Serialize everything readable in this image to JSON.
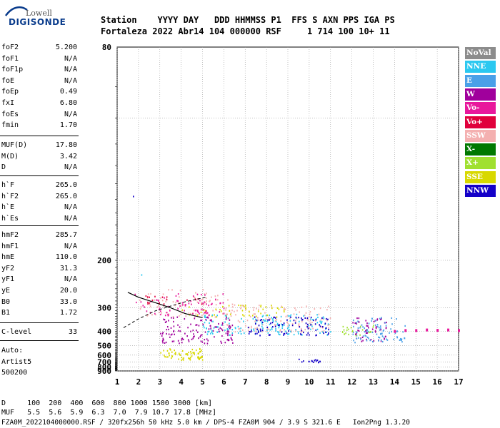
{
  "logo": {
    "line1": "Lowell",
    "line2": "DIGISONDE"
  },
  "header": {
    "row1": "Station    YYYY DAY   DDD HHMMSS P1  FFS S AXN PPS IGA PS",
    "row2": "Fortaleza 2022 Abr14 104 000000 RSF     1 714 100 10+ 11"
  },
  "params_group1": [
    {
      "key": "foF2",
      "value": "5.200"
    },
    {
      "key": "foF1",
      "value": "N/A"
    },
    {
      "key": "foF1p",
      "value": "N/A"
    },
    {
      "key": "foE",
      "value": "N/A"
    },
    {
      "key": "foEp",
      "value": "0.49"
    },
    {
      "key": "fxI",
      "value": "6.80"
    },
    {
      "key": "foEs",
      "value": "N/A"
    },
    {
      "key": "fmin",
      "value": "1.70"
    }
  ],
  "params_group2": [
    {
      "key": "MUF(D)",
      "value": "17.80"
    },
    {
      "key": "M(D)",
      "value": "3.42"
    },
    {
      "key": "D",
      "value": "N/A"
    }
  ],
  "params_group3": [
    {
      "key": "h`F",
      "value": "265.0"
    },
    {
      "key": "h`F2",
      "value": "265.0"
    },
    {
      "key": "h`E",
      "value": "N/A"
    },
    {
      "key": "h`Es",
      "value": "N/A"
    }
  ],
  "params_group4": [
    {
      "key": "hmF2",
      "value": "285.7"
    },
    {
      "key": "hmF1",
      "value": "N/A"
    },
    {
      "key": "hmE",
      "value": "110.0"
    },
    {
      "key": "yF2",
      "value": "31.3"
    },
    {
      "key": "yF1",
      "value": "N/A"
    },
    {
      "key": "yE",
      "value": "20.0"
    },
    {
      "key": "B0",
      "value": "33.0"
    },
    {
      "key": "B1",
      "value": "1.72"
    }
  ],
  "params_group5": [
    {
      "key": "C-level",
      "value": "33"
    }
  ],
  "side_notes": [
    "Auto:",
    "Artist5",
    "500200"
  ],
  "legend": [
    {
      "label": "NoVal",
      "color": "#8c8c8c"
    },
    {
      "label": "NNE",
      "color": "#2bc8f0"
    },
    {
      "label": "E",
      "color": "#4aa0e8"
    },
    {
      "label": "W",
      "color": "#a0009c"
    },
    {
      "label": "Vo-",
      "color": "#e8189c"
    },
    {
      "label": "Vo+",
      "color": "#e0003c"
    },
    {
      "label": "SSW",
      "color": "#f4b0b0"
    },
    {
      "label": "X-",
      "color": "#007800"
    },
    {
      "label": "X+",
      "color": "#a0e030"
    },
    {
      "label": "SSE",
      "color": "#d8d800"
    },
    {
      "label": "NNW",
      "color": "#1400c8"
    }
  ],
  "bottom": {
    "row_d": "D     100  200  400  600  800 1000 1500 3000 [km]",
    "row_muf": "MUF   5.5  5.6  5.9  6.3  7.0  7.9 10.7 17.8 [MHz]",
    "footer": "FZA0M_2022104000000.RSF / 320fx256h 50 kHz 5.0 km / DPS-4 FZA0M 904 / 3.9 S 321.6 E   Ion2Png 1.3.20"
  },
  "chart_data": {
    "type": "scatter",
    "title": "",
    "xlabel": "",
    "ylabel": "",
    "x_ticks": [
      1,
      2,
      3,
      4,
      5,
      6,
      7,
      8,
      9,
      10,
      11,
      12,
      13,
      14,
      15,
      16,
      17
    ],
    "y_ticks": [
      80,
      200,
      300,
      400,
      500,
      600,
      700,
      800,
      900
    ],
    "xlim": [
      1,
      17
    ],
    "ylim": [
      80,
      900
    ],
    "y_scale": "reciprocal",
    "grid": true,
    "clusters": [
      {
        "series": "SSW",
        "x": [
          2.0,
          6.5
        ],
        "y": [
          250,
          330
        ]
      },
      {
        "series": "SSW",
        "x": [
          6.0,
          11.0
        ],
        "y": [
          290,
          400
        ]
      },
      {
        "series": "SSE",
        "x": [
          4.0,
          9.0
        ],
        "y": [
          290,
          330
        ]
      },
      {
        "series": "SSE",
        "x": [
          3.0,
          5.0
        ],
        "y": [
          520,
          660
        ]
      },
      {
        "series": "NNE",
        "x": [
          5.0,
          11.0
        ],
        "y": [
          320,
          420
        ]
      },
      {
        "series": "NNE",
        "x": [
          2.0,
          2.6
        ],
        "y": [
          215,
          222
        ]
      },
      {
        "series": "W",
        "x": [
          3.0,
          6.5
        ],
        "y": [
          330,
          480
        ]
      },
      {
        "series": "W",
        "x": [
          12.0,
          13.6
        ],
        "y": [
          330,
          460
        ]
      },
      {
        "series": "Vo-",
        "x": [
          1.8,
          6.0
        ],
        "y": [
          260,
          330
        ]
      },
      {
        "series": "Vo+",
        "x": [
          2.0,
          5.0
        ],
        "y": [
          265,
          290
        ]
      },
      {
        "series": "NNW",
        "x": [
          7.0,
          11.0
        ],
        "y": [
          330,
          420
        ]
      },
      {
        "series": "NNW",
        "x": [
          1.3,
          1.9
        ],
        "y": [
          130,
          138
        ]
      },
      {
        "series": "E",
        "x": [
          12.0,
          14.5
        ],
        "y": [
          330,
          470
        ]
      },
      {
        "series": "X+",
        "x": [
          11.5,
          13.0
        ],
        "y": [
          360,
          420
        ]
      },
      {
        "series": "NNW",
        "x": [
          9.5,
          10.6
        ],
        "y": [
          640,
          700
        ]
      }
    ],
    "trace_series": [
      {
        "name": "high-band",
        "x": [
          14,
          14.5,
          15,
          15.5,
          16,
          16.5,
          17
        ],
        "y": [
          400,
          395,
          395,
          392,
          394,
          392,
          395
        ]
      }
    ],
    "profile_line": {
      "x": [
        1.5,
        2.0,
        2.8,
        3.5,
        4.2,
        5.0
      ],
      "y": [
        258,
        270,
        285,
        300,
        320,
        335
      ]
    },
    "dashed_line": {
      "x": [
        1.3,
        2.0,
        2.8,
        3.5,
        4.2,
        5.0,
        5.2
      ],
      "y": [
        380,
        340,
        310,
        295,
        282,
        272,
        270
      ]
    }
  }
}
